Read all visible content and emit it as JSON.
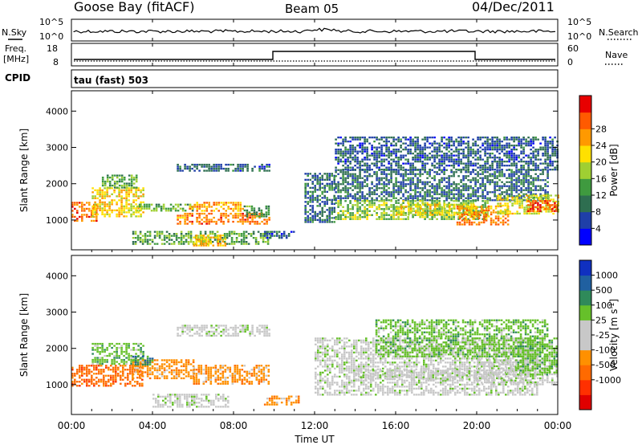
{
  "header": {
    "station": "Goose Bay (fitACF)",
    "beam": "Beam 05",
    "date": "04/Dec/2011"
  },
  "side_labels": {
    "nsky": "N.Sky",
    "nsearch": "N.Search",
    "freq_line1": "Freq.",
    "freq_line2": "[MHz]",
    "nave": "Nave",
    "cpid": "CPID",
    "cpid_value": "tau (fast) 503"
  },
  "noise_panel": {
    "yticks": [
      "10^5",
      "10^0"
    ]
  },
  "freq_panel": {
    "left_ticks": [
      "18",
      "8"
    ],
    "right_ticks": [
      "60",
      "0"
    ]
  },
  "chart_data": [
    {
      "type": "heatmap",
      "name": "power",
      "ylabel": "Slant Range [km]",
      "ylim": [
        180,
        4560
      ],
      "yticks": [
        1000,
        2000,
        3000,
        4000
      ],
      "xlim": [
        0,
        24
      ],
      "colorbar": {
        "label": "Power [dB]",
        "ticks": [
          4,
          8,
          12,
          16,
          20,
          24,
          28
        ],
        "colors": [
          "#0000ff",
          "#1f3fa8",
          "#2e6e50",
          "#3f9a3f",
          "#9fcf32",
          "#ffe000",
          "#ff9900",
          "#ff5a00",
          "#e80000"
        ],
        "range": [
          0,
          32
        ]
      },
      "regions": [
        {
          "t": [
            0.0,
            1.2
          ],
          "r": [
            950,
            1500
          ],
          "v": 26
        },
        {
          "t": [
            1.0,
            3.5
          ],
          "r": [
            1100,
            1900
          ],
          "v": 20
        },
        {
          "t": [
            1.5,
            3.2
          ],
          "r": [
            1900,
            2250
          ],
          "v": 13
        },
        {
          "t": [
            3.2,
            6.0
          ],
          "r": [
            1250,
            1450
          ],
          "v": 14
        },
        {
          "t": [
            5.2,
            9.8
          ],
          "r": [
            880,
            1200
          ],
          "v": 25
        },
        {
          "t": [
            5.8,
            8.5
          ],
          "r": [
            1250,
            1500
          ],
          "v": 23
        },
        {
          "t": [
            8.5,
            9.8
          ],
          "r": [
            1100,
            1400
          ],
          "v": 11
        },
        {
          "t": [
            5.2,
            9.8
          ],
          "r": [
            2350,
            2550
          ],
          "v": 7
        },
        {
          "t": [
            3.0,
            9.8
          ],
          "r": [
            350,
            700
          ],
          "v": 12
        },
        {
          "t": [
            6.0,
            7.6
          ],
          "r": [
            300,
            600
          ],
          "v": 21
        },
        {
          "t": [
            9.5,
            11.0
          ],
          "r": [
            480,
            700
          ],
          "v": 7
        },
        {
          "t": [
            11.5,
            13.0
          ],
          "r": [
            950,
            2300
          ],
          "v": 8
        },
        {
          "t": [
            13.0,
            23.5
          ],
          "r": [
            1550,
            2400
          ],
          "v": 8
        },
        {
          "t": [
            13.0,
            20.5
          ],
          "r": [
            1000,
            1550
          ],
          "v": 15
        },
        {
          "t": [
            16.0,
            20.0
          ],
          "r": [
            1150,
            1450
          ],
          "v": 19
        },
        {
          "t": [
            19.0,
            21.5
          ],
          "r": [
            900,
            1400
          ],
          "v": 24
        },
        {
          "t": [
            21.0,
            24.0
          ],
          "r": [
            1150,
            1700
          ],
          "v": 18
        },
        {
          "t": [
            22.5,
            24.0
          ],
          "r": [
            1250,
            1550
          ],
          "v": 27
        },
        {
          "t": [
            13.0,
            24.0
          ],
          "r": [
            2400,
            3300
          ],
          "v": 7
        }
      ]
    },
    {
      "type": "heatmap",
      "name": "velocity",
      "ylabel": "Slant Range [km]",
      "ylim": [
        180,
        4560
      ],
      "yticks": [
        1000,
        2000,
        3000,
        4000
      ],
      "xlim": [
        0,
        24
      ],
      "xticks": [
        "00:00",
        "04:00",
        "08:00",
        "12:00",
        "16:00",
        "20:00",
        "00:00"
      ],
      "xlabel": "Time UT",
      "colorbar": {
        "label": "Velocity [m s^-1]",
        "ticks": [
          "1000",
          "500",
          "100",
          "25",
          "-25",
          "-100",
          "-500",
          "-1000"
        ],
        "colors": [
          "#1030c0",
          "#2060a0",
          "#2f8a5a",
          "#66c02a",
          "#c8c8c8",
          "#c8c8c8",
          "#ff9000",
          "#ff6a00",
          "#ff3000",
          "#e00000"
        ]
      },
      "regions": [
        {
          "t": [
            0.0,
            3.5
          ],
          "r": [
            950,
            1550
          ],
          "c": 7
        },
        {
          "t": [
            1.0,
            3.5
          ],
          "r": [
            1550,
            2150
          ],
          "c": 3
        },
        {
          "t": [
            3.0,
            6.0
          ],
          "r": [
            1150,
            1700
          ],
          "c": 6
        },
        {
          "t": [
            3.0,
            4.0
          ],
          "r": [
            1550,
            1800
          ],
          "c": 2
        },
        {
          "t": [
            6.0,
            9.8
          ],
          "r": [
            1000,
            1550
          ],
          "c": 6
        },
        {
          "t": [
            5.2,
            9.8
          ],
          "r": [
            2350,
            2650
          ],
          "c": 4
        },
        {
          "t": [
            4.0,
            7.8
          ],
          "r": [
            400,
            750
          ],
          "c": 4
        },
        {
          "t": [
            9.5,
            11.2
          ],
          "r": [
            450,
            700
          ],
          "c": 6
        },
        {
          "t": [
            12.0,
            23.0
          ],
          "r": [
            700,
            2300
          ],
          "c": 4
        },
        {
          "t": [
            14.0,
            20.0
          ],
          "r": [
            1150,
            1450
          ],
          "c": 4
        },
        {
          "t": [
            20.0,
            24.0
          ],
          "r": [
            1000,
            1700
          ],
          "c": 4
        },
        {
          "t": [
            22.0,
            24.0
          ],
          "r": [
            1300,
            2300
          ],
          "c": 3
        },
        {
          "t": [
            15.0,
            23.5
          ],
          "r": [
            1800,
            2800
          ],
          "c": 3
        }
      ]
    }
  ]
}
